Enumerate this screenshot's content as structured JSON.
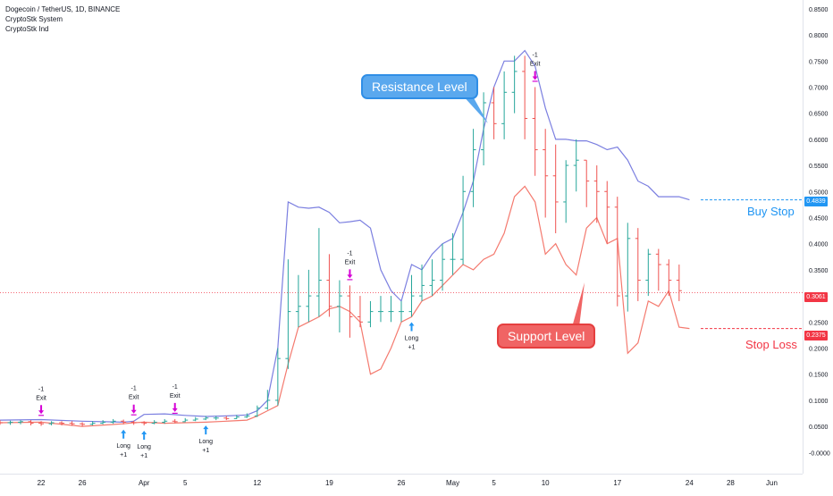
{
  "legend": {
    "symbol": "Dogecoin / TetherUS, 1D, BINANCE",
    "indicator_1": "CryptoStk System",
    "indicator_2": "CryptoStk Ind"
  },
  "annotations": {
    "resistance": "Resistance Level",
    "support": "Support Level",
    "buy_stop": "Buy Stop",
    "stop_loss": "Stop Loss"
  },
  "price_tags": {
    "buy_stop": "0.4839",
    "last": "0.3061",
    "stop_loss": "0.2375"
  },
  "colors": {
    "upper_band": "#7b7fe0",
    "lower_band": "#f47a6f",
    "up_bar": "#26a69a",
    "down_bar": "#ef5350",
    "exit_marker": "#d500d5",
    "long_marker": "#2196f3",
    "last_price_line": "#f23645"
  },
  "chart_data": {
    "type": "line",
    "title": "Dogecoin / TetherUS, 1D, BINANCE",
    "ylim": [
      -0.02,
      0.86
    ],
    "y_ticks": [
      "0.8500",
      "0.8000",
      "0.7500",
      "0.7000",
      "0.6500",
      "0.6000",
      "0.5500",
      "0.5000",
      "0.4500",
      "0.4000",
      "0.3500",
      "0.3000",
      "0.2500",
      "0.2000",
      "0.1500",
      "0.1000",
      "0.0500",
      "-0.0000"
    ],
    "x_ticks": [
      "22",
      "26",
      "Apr",
      "5",
      "12",
      "19",
      "26",
      "May",
      "5",
      "10",
      "17",
      "24",
      "28",
      "Jun"
    ],
    "x_tick_days": [
      0,
      4,
      10,
      14,
      21,
      28,
      35,
      40,
      44,
      49,
      56,
      63,
      67,
      71
    ],
    "x_start_date": "2021-03-22",
    "x_range_days": [
      -4,
      74
    ],
    "last_price": 0.3061,
    "buy_stop": 0.4839,
    "stop_loss": 0.2375,
    "series": [
      {
        "name": "CryptoStk System",
        "role": "upper",
        "x": [
          -4,
          0,
          4,
          8,
          9,
          10,
          12,
          14,
          16,
          18,
          20,
          21,
          22,
          23,
          24,
          25,
          26,
          27,
          28,
          29,
          30,
          31,
          32,
          33,
          34,
          35,
          36,
          37,
          38,
          39,
          40,
          41,
          42,
          43,
          44,
          45,
          46,
          47,
          48,
          49,
          50,
          51,
          52,
          53,
          54,
          55,
          56,
          57,
          58,
          59,
          60,
          61,
          62,
          63
        ],
        "values": [
          0.062,
          0.063,
          0.06,
          0.058,
          0.06,
          0.073,
          0.074,
          0.071,
          0.069,
          0.07,
          0.072,
          0.08,
          0.1,
          0.2,
          0.48,
          0.47,
          0.468,
          0.47,
          0.46,
          0.44,
          0.442,
          0.445,
          0.43,
          0.35,
          0.31,
          0.29,
          0.36,
          0.35,
          0.38,
          0.4,
          0.41,
          0.46,
          0.52,
          0.62,
          0.7,
          0.75,
          0.75,
          0.77,
          0.74,
          0.66,
          0.6,
          0.6,
          0.597,
          0.597,
          0.59,
          0.58,
          0.585,
          0.56,
          0.52,
          0.51,
          0.49,
          0.49,
          0.49,
          0.484
        ]
      },
      {
        "name": "CryptoStk Ind",
        "role": "lower",
        "x": [
          -4,
          0,
          4,
          8,
          9,
          10,
          12,
          14,
          16,
          18,
          20,
          21,
          22,
          23,
          24,
          25,
          26,
          27,
          28,
          29,
          30,
          31,
          32,
          33,
          34,
          35,
          36,
          37,
          38,
          39,
          40,
          41,
          42,
          43,
          44,
          45,
          46,
          47,
          48,
          49,
          50,
          51,
          52,
          53,
          54,
          55,
          56,
          57,
          58,
          59,
          60,
          61,
          62,
          63
        ],
        "values": [
          0.057,
          0.058,
          0.05,
          0.055,
          0.057,
          0.058,
          0.056,
          0.057,
          0.058,
          0.06,
          0.062,
          0.07,
          0.08,
          0.09,
          0.17,
          0.24,
          0.25,
          0.26,
          0.275,
          0.28,
          0.27,
          0.25,
          0.15,
          0.16,
          0.2,
          0.25,
          0.26,
          0.29,
          0.3,
          0.32,
          0.34,
          0.36,
          0.35,
          0.37,
          0.38,
          0.42,
          0.49,
          0.51,
          0.48,
          0.38,
          0.4,
          0.36,
          0.34,
          0.43,
          0.45,
          0.4,
          0.41,
          0.19,
          0.21,
          0.29,
          0.28,
          0.31,
          0.24,
          0.2375
        ]
      }
    ],
    "bars": {
      "x": [
        -4,
        -3,
        -2,
        -1,
        0,
        1,
        2,
        3,
        4,
        5,
        6,
        7,
        8,
        9,
        10,
        11,
        12,
        13,
        14,
        15,
        16,
        17,
        18,
        19,
        20,
        21,
        22,
        23,
        24,
        25,
        26,
        27,
        28,
        29,
        30,
        31,
        32,
        33,
        34,
        35,
        36,
        37,
        38,
        39,
        40,
        41,
        42,
        43,
        44,
        45,
        46,
        47,
        48,
        49,
        50,
        51,
        52,
        53,
        54,
        55,
        56,
        57,
        58,
        59,
        60,
        61,
        62
      ],
      "open": [
        0.058,
        0.057,
        0.058,
        0.059,
        0.056,
        0.055,
        0.057,
        0.056,
        0.055,
        0.054,
        0.056,
        0.058,
        0.06,
        0.058,
        0.057,
        0.056,
        0.058,
        0.06,
        0.059,
        0.062,
        0.064,
        0.066,
        0.066,
        0.065,
        0.068,
        0.07,
        0.085,
        0.1,
        0.18,
        0.27,
        0.28,
        0.3,
        0.33,
        0.28,
        0.3,
        0.26,
        0.25,
        0.27,
        0.27,
        0.27,
        0.27,
        0.3,
        0.32,
        0.33,
        0.37,
        0.37,
        0.5,
        0.58,
        0.67,
        0.63,
        0.69,
        0.73,
        0.64,
        0.58,
        0.53,
        0.48,
        0.55,
        0.56,
        0.52,
        0.5,
        0.47,
        0.3,
        0.41,
        0.33,
        0.38,
        0.36,
        0.33
      ],
      "close": [
        0.057,
        0.058,
        0.059,
        0.056,
        0.055,
        0.057,
        0.056,
        0.055,
        0.054,
        0.056,
        0.058,
        0.06,
        0.058,
        0.057,
        0.056,
        0.058,
        0.06,
        0.059,
        0.062,
        0.064,
        0.066,
        0.066,
        0.065,
        0.068,
        0.07,
        0.085,
        0.1,
        0.18,
        0.27,
        0.28,
        0.3,
        0.33,
        0.28,
        0.3,
        0.26,
        0.25,
        0.27,
        0.27,
        0.27,
        0.27,
        0.3,
        0.32,
        0.33,
        0.37,
        0.37,
        0.5,
        0.58,
        0.67,
        0.63,
        0.69,
        0.73,
        0.64,
        0.58,
        0.53,
        0.48,
        0.55,
        0.56,
        0.52,
        0.5,
        0.47,
        0.3,
        0.41,
        0.33,
        0.38,
        0.36,
        0.33,
        0.31
      ],
      "high": [
        0.062,
        0.061,
        0.062,
        0.062,
        0.06,
        0.06,
        0.06,
        0.06,
        0.058,
        0.06,
        0.062,
        0.064,
        0.063,
        0.061,
        0.06,
        0.062,
        0.064,
        0.064,
        0.066,
        0.068,
        0.07,
        0.07,
        0.07,
        0.072,
        0.075,
        0.09,
        0.12,
        0.2,
        0.37,
        0.34,
        0.35,
        0.43,
        0.38,
        0.33,
        0.32,
        0.3,
        0.29,
        0.3,
        0.3,
        0.29,
        0.34,
        0.36,
        0.37,
        0.4,
        0.42,
        0.53,
        0.62,
        0.69,
        0.7,
        0.73,
        0.76,
        0.76,
        0.7,
        0.62,
        0.59,
        0.56,
        0.6,
        0.56,
        0.55,
        0.52,
        0.49,
        0.44,
        0.43,
        0.39,
        0.39,
        0.37,
        0.36
      ],
      "low": [
        0.053,
        0.053,
        0.054,
        0.052,
        0.051,
        0.052,
        0.052,
        0.051,
        0.05,
        0.052,
        0.054,
        0.055,
        0.054,
        0.053,
        0.052,
        0.054,
        0.055,
        0.056,
        0.058,
        0.06,
        0.062,
        0.062,
        0.062,
        0.064,
        0.066,
        0.068,
        0.082,
        0.09,
        0.16,
        0.24,
        0.25,
        0.26,
        0.26,
        0.23,
        0.22,
        0.24,
        0.24,
        0.25,
        0.25,
        0.25,
        0.26,
        0.29,
        0.3,
        0.31,
        0.34,
        0.36,
        0.47,
        0.55,
        0.6,
        0.6,
        0.65,
        0.6,
        0.53,
        0.45,
        0.42,
        0.44,
        0.5,
        0.47,
        0.44,
        0.4,
        0.28,
        0.27,
        0.29,
        0.3,
        0.31,
        0.3,
        0.29
      ]
    },
    "signals": [
      {
        "type": "exit",
        "x": 0,
        "label": "-1\nExit"
      },
      {
        "type": "exit",
        "x": 9,
        "label": "-1\nExit"
      },
      {
        "type": "exit",
        "x": 13,
        "label": "-1\nExit"
      },
      {
        "type": "exit",
        "x": 30,
        "label": "-1\nExit"
      },
      {
        "type": "exit",
        "x": 48,
        "label": "-1\nExit"
      },
      {
        "type": "long",
        "x": 8,
        "label": "Long\n+1"
      },
      {
        "type": "long",
        "x": 10,
        "label": "Long\n+1"
      },
      {
        "type": "long",
        "x": 16,
        "label": "Long\n+1"
      },
      {
        "type": "long",
        "x": 36,
        "label": "Long\n+1"
      }
    ]
  }
}
